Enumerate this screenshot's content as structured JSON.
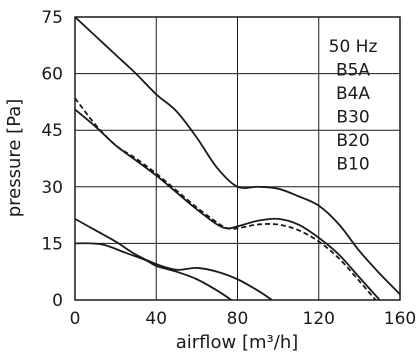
{
  "chart_data": {
    "type": "line",
    "title": "",
    "xlabel": "airflow [m³/h]",
    "ylabel": "pressure [Pa]",
    "xlim": [
      0,
      160
    ],
    "ylim": [
      0,
      75
    ],
    "xticks": [
      0,
      40,
      80,
      120,
      160
    ],
    "yticks": [
      0,
      15,
      30,
      45,
      60,
      75
    ],
    "grid": true,
    "legend_position": "top-right",
    "legend": [
      "50 Hz",
      "B5A",
      "B4A",
      "B30",
      "B20",
      "B10"
    ],
    "series": [
      {
        "values": [
          [
            0,
            75
          ],
          [
            10,
            70
          ],
          [
            20,
            65
          ],
          [
            30,
            60
          ],
          [
            40,
            54.5
          ],
          [
            50,
            50
          ],
          [
            60,
            43
          ],
          [
            70,
            35
          ],
          [
            80,
            30
          ],
          [
            90,
            30
          ],
          [
            100,
            29.5
          ],
          [
            110,
            27.5
          ],
          [
            120,
            25
          ],
          [
            130,
            20
          ],
          [
            140,
            13
          ],
          [
            150,
            7
          ],
          [
            160,
            1.5
          ]
        ],
        "style": "solid"
      },
      {
        "values": [
          [
            0,
            53.5
          ],
          [
            10,
            46.5
          ],
          [
            20,
            41
          ],
          [
            30,
            37.5
          ],
          [
            40,
            33.5
          ],
          [
            50,
            29
          ],
          [
            60,
            24.5
          ],
          [
            70,
            20.5
          ],
          [
            75,
            19
          ],
          [
            80,
            19
          ],
          [
            90,
            20
          ],
          [
            100,
            20
          ],
          [
            110,
            18.5
          ],
          [
            120,
            15.5
          ],
          [
            130,
            11
          ],
          [
            140,
            5
          ],
          [
            148,
            0
          ]
        ],
        "style": "dashed"
      },
      {
        "values": [
          [
            0,
            50.5
          ],
          [
            10,
            46
          ],
          [
            20,
            41
          ],
          [
            30,
            37
          ],
          [
            40,
            33
          ],
          [
            50,
            28.5
          ],
          [
            60,
            24
          ],
          [
            70,
            20
          ],
          [
            75,
            19
          ],
          [
            80,
            19.5
          ],
          [
            90,
            21
          ],
          [
            100,
            21.5
          ],
          [
            110,
            20
          ],
          [
            120,
            16.5
          ],
          [
            130,
            12
          ],
          [
            140,
            6
          ],
          [
            150,
            0
          ]
        ],
        "style": "solid"
      },
      {
        "values": [
          [
            0,
            21.5
          ],
          [
            10,
            18.5
          ],
          [
            20,
            15.5
          ],
          [
            30,
            12
          ],
          [
            40,
            9.5
          ],
          [
            50,
            8
          ],
          [
            60,
            8.5
          ],
          [
            70,
            7.5
          ],
          [
            80,
            5.5
          ],
          [
            90,
            2.5
          ],
          [
            97,
            0
          ]
        ],
        "style": "solid"
      },
      {
        "values": [
          [
            0,
            15
          ],
          [
            8,
            15
          ],
          [
            15,
            14.5
          ],
          [
            25,
            12.5
          ],
          [
            35,
            10.5
          ],
          [
            40,
            9
          ],
          [
            50,
            7.5
          ],
          [
            60,
            5.5
          ],
          [
            70,
            2.5
          ],
          [
            77,
            0
          ]
        ],
        "style": "solid"
      }
    ]
  }
}
